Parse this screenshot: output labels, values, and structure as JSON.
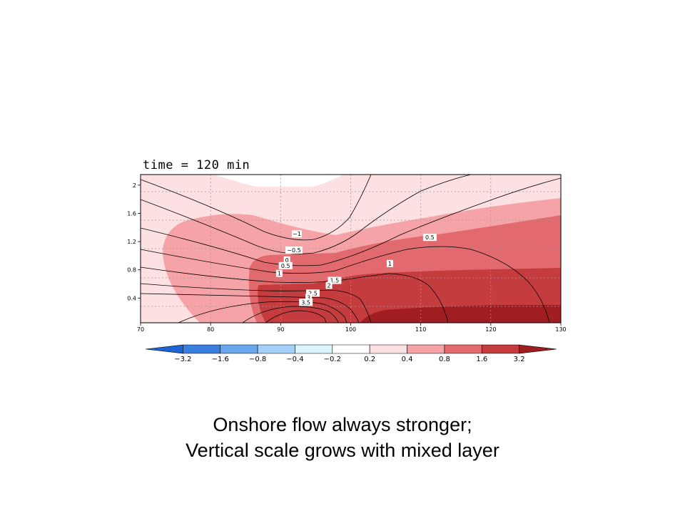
{
  "chart_data": {
    "type": "contour",
    "title": "time = 120 min",
    "xlim": [
      70,
      130
    ],
    "ylim": [
      0.05,
      2.15
    ],
    "x_ticks": [
      "70",
      "80",
      "90",
      "100",
      "110",
      "120",
      "130"
    ],
    "y_ticks": [
      "0.4",
      "0.8",
      "1.2",
      "1.6",
      "2"
    ],
    "grid": true,
    "shading_levels": [
      "-3.2",
      "-1.6",
      "-0.8",
      "-0.4",
      "-0.2",
      "0.2",
      "0.4",
      "0.8",
      "1.6",
      "3.2"
    ],
    "shading_colors": [
      "#1f64d2",
      "#3a7fe0",
      "#6aa8ee",
      "#a5d0f7",
      "#dcf4fb",
      "#ffffff",
      "#fde0e2",
      "#f5a3a6",
      "#e26a6e",
      "#c53c3f",
      "#a01e22"
    ],
    "contour_labels": [
      {
        "text": "-1",
        "x": 92.3,
        "y": 1.31
      },
      {
        "text": "-0.5",
        "x": 91.9,
        "y": 1.08
      },
      {
        "text": "0",
        "x": 90.9,
        "y": 0.94
      },
      {
        "text": "0.5",
        "x": 90.7,
        "y": 0.86
      },
      {
        "text": "0.5",
        "x": 111.3,
        "y": 1.26
      },
      {
        "text": "1",
        "x": 89.8,
        "y": 0.75
      },
      {
        "text": "1",
        "x": 105.6,
        "y": 0.89
      },
      {
        "text": "1.5",
        "x": 97.7,
        "y": 0.65
      },
      {
        "text": "2",
        "x": 96.9,
        "y": 0.58
      },
      {
        "text": "2.5",
        "x": 94.6,
        "y": 0.47
      },
      {
        "text": "3",
        "x": 94.0,
        "y": 0.41
      },
      {
        "text": "3.5",
        "x": 93.6,
        "y": 0.34
      }
    ]
  },
  "caption": {
    "line1": "Onshore flow always stronger;",
    "line2": "Vertical scale grows with mixed layer"
  }
}
